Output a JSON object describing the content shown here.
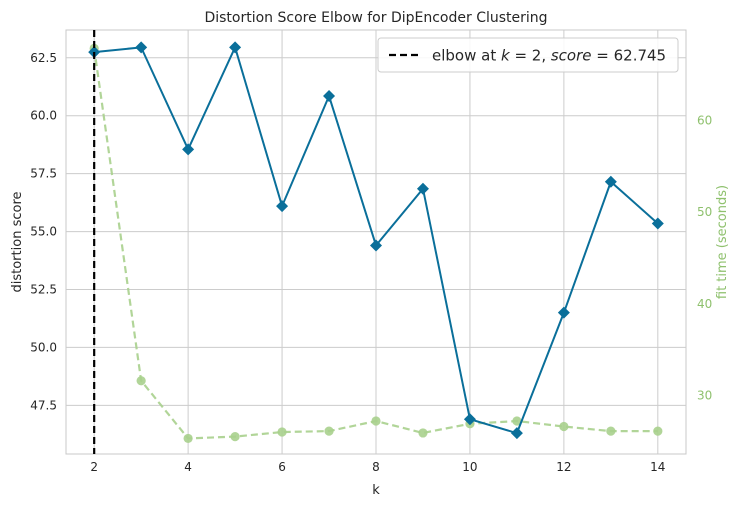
{
  "chart_data": {
    "type": "line",
    "title": "Distortion Score Elbow for DipEncoder Clustering",
    "xlabel": "k",
    "ylabel": "distortion score",
    "y2label": "fit time (seconds)",
    "x": [
      2,
      3,
      4,
      5,
      6,
      7,
      8,
      9,
      10,
      11,
      12,
      13,
      14
    ],
    "xticks": [
      2,
      4,
      6,
      8,
      10,
      12,
      14
    ],
    "xlim": [
      1.4,
      14.6
    ],
    "ylim": [
      45.4,
      63.7
    ],
    "yticks": [
      "47.5",
      "50.0",
      "52.5",
      "55.0",
      "57.5",
      "60.0",
      "62.5"
    ],
    "y2lim": [
      23.6,
      69.9
    ],
    "y2ticks": [
      "30",
      "40",
      "50",
      "60"
    ],
    "grid": true,
    "legend_position": "top-right",
    "series": [
      {
        "axis": "left",
        "color": "#0a6f9a",
        "marker": "diamond",
        "values": [
          62.745,
          62.95,
          58.55,
          62.95,
          56.1,
          60.85,
          54.4,
          56.85,
          46.9,
          46.3,
          51.5,
          57.15,
          55.35
        ]
      },
      {
        "axis": "right",
        "color": "#a8d08d",
        "marker": "circle",
        "linestyle": "dashed",
        "values": [
          67.9,
          31.6,
          25.3,
          25.5,
          26.0,
          26.1,
          27.2,
          25.9,
          26.9,
          27.2,
          26.6,
          26.1,
          26.1
        ]
      }
    ],
    "elbow": {
      "k": 2,
      "label_prefix": "elbow at ",
      "label_k": "k",
      "label_eq1": " = 2, ",
      "label_score": "score",
      "label_eq2": " = 62.745"
    }
  }
}
